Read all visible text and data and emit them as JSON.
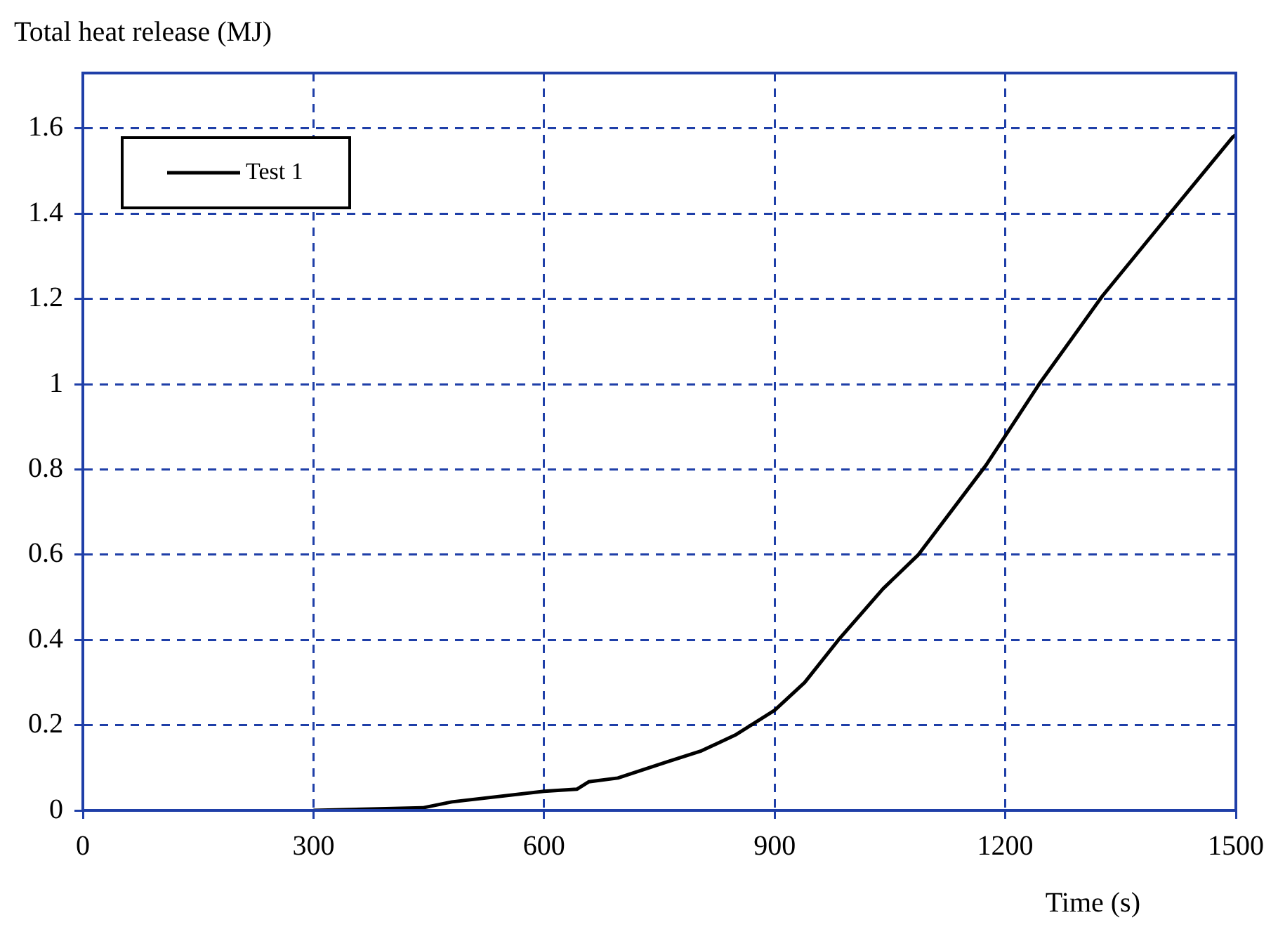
{
  "chart_data": {
    "type": "line",
    "xlabel": "Time (s)",
    "ylabel": "Total heat release (MJ)",
    "series": [
      {
        "name": "Test 1",
        "color": "#000000",
        "x": [
          300,
          442,
          480,
          600,
          643,
          658,
          696,
          760,
          805,
          850,
          900,
          939,
          983,
          1041,
          1087,
          1175,
          1199,
          1244,
          1326,
          1414,
          1496,
          1500
        ],
        "values": [
          0,
          0.006,
          0.02,
          0.045,
          0.05,
          0.067,
          0.076,
          0.114,
          0.14,
          0.178,
          0.235,
          0.3,
          0.4,
          0.52,
          0.6,
          0.81,
          0.876,
          1.0,
          1.206,
          1.4,
          1.58,
          1.585
        ]
      }
    ],
    "xlim": [
      0,
      1500
    ],
    "xticks": [
      0,
      300,
      600,
      900,
      1200,
      1500
    ],
    "ylim": [
      0,
      1.73
    ],
    "yticks": [
      0,
      0.2,
      0.4,
      0.6,
      0.8,
      1,
      1.2,
      1.4,
      1.6
    ],
    "grid": true,
    "legend": "top left",
    "marker": "none",
    "line_style": "solid"
  }
}
